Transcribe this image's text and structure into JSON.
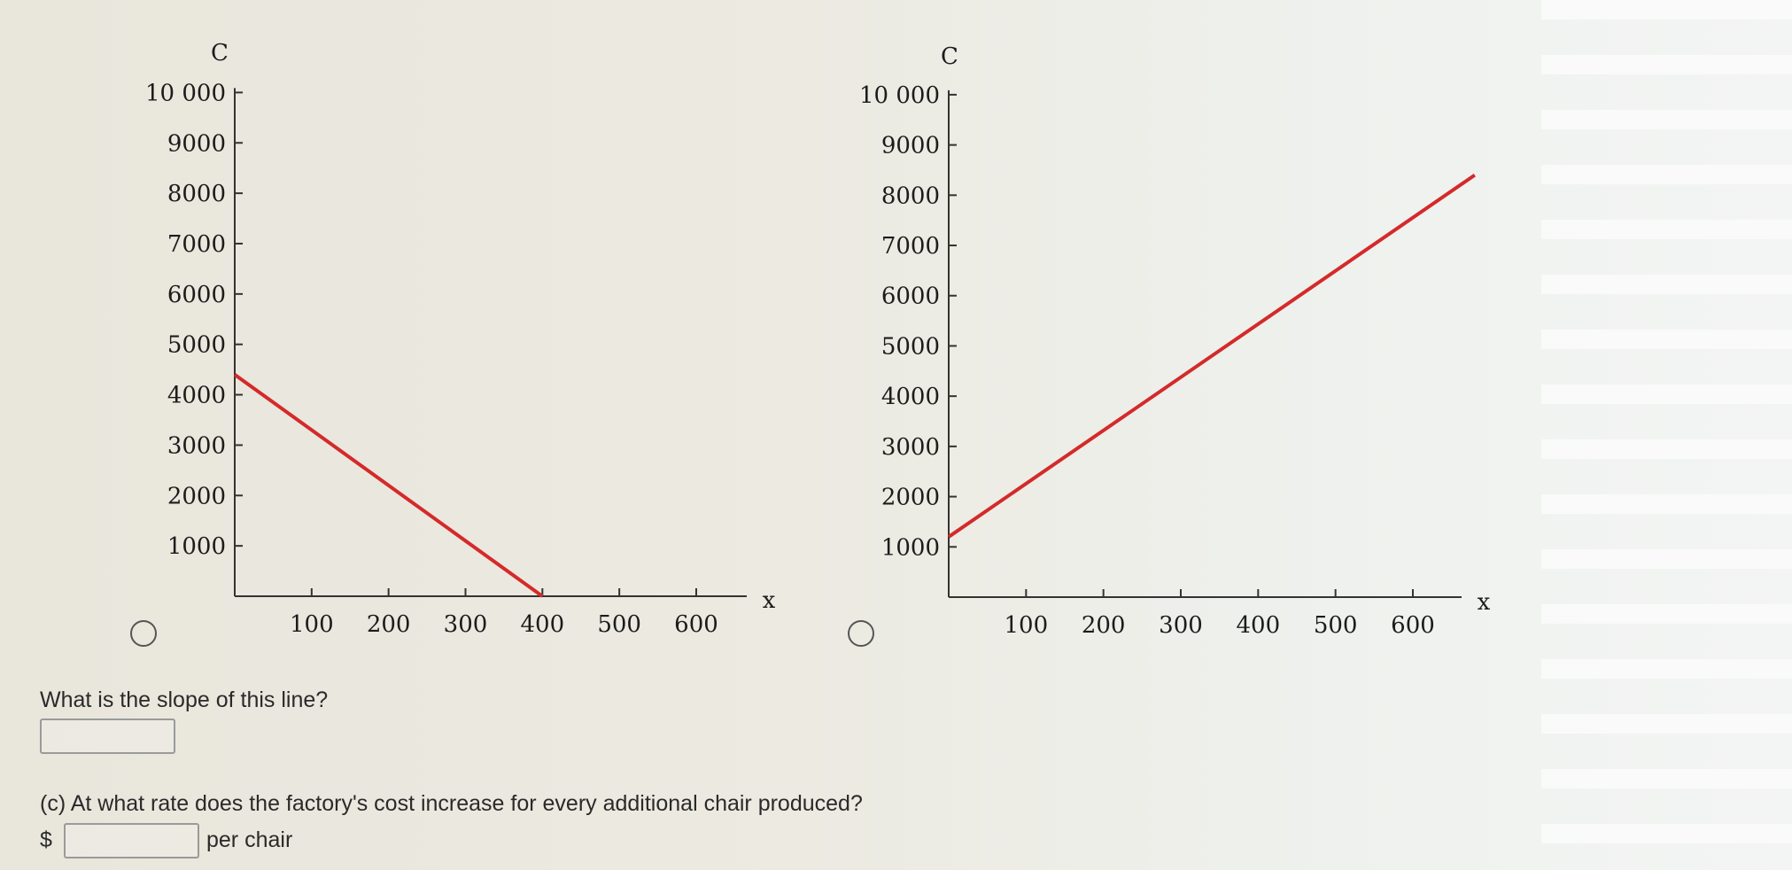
{
  "graphs": [
    {
      "id": "graph-a",
      "y_axis_label": "C",
      "x_axis_label": "x",
      "chart_data": {
        "type": "line",
        "title": "",
        "xlabel": "x",
        "ylabel": "C",
        "xlim": [
          0,
          600
        ],
        "ylim": [
          0,
          10000
        ],
        "x_ticks": [
          100,
          200,
          300,
          400,
          500,
          600
        ],
        "y_ticks": [
          1000,
          2000,
          3000,
          4000,
          5000,
          6000,
          7000,
          8000,
          9000,
          10000
        ],
        "x_tick_labels": [
          "100",
          "200",
          "300",
          "400",
          "500",
          "600"
        ],
        "y_tick_labels": [
          "1000",
          "2000",
          "3000",
          "4000",
          "5000",
          "6000",
          "7000",
          "8000",
          "9000",
          "10 000"
        ],
        "line_color": "#d42a2a",
        "series": [
          {
            "x": [
              0,
              400
            ],
            "y": [
              4400,
              0
            ]
          }
        ]
      }
    },
    {
      "id": "graph-b",
      "y_axis_label": "C",
      "x_axis_label": "x",
      "chart_data": {
        "type": "line",
        "title": "",
        "xlabel": "x",
        "ylabel": "C",
        "xlim": [
          0,
          600
        ],
        "ylim": [
          0,
          10000
        ],
        "x_ticks": [
          100,
          200,
          300,
          400,
          500,
          600
        ],
        "y_ticks": [
          1000,
          2000,
          3000,
          4000,
          5000,
          6000,
          7000,
          8000,
          9000,
          10000
        ],
        "x_tick_labels": [
          "100",
          "200",
          "300",
          "400",
          "500",
          "600"
        ],
        "y_tick_labels": [
          "1000",
          "2000",
          "3000",
          "4000",
          "5000",
          "6000",
          "7000",
          "8000",
          "9000",
          "10 000"
        ],
        "line_color": "#d42a2a",
        "series": [
          {
            "x": [
              0,
              680
            ],
            "y": [
              1200,
              8400
            ]
          }
        ]
      }
    }
  ],
  "slope_question": {
    "text": "What is the slope of this line?",
    "value": ""
  },
  "rate_question": {
    "text": "(c) At what rate does the factory's cost increase for every additional chair produced?",
    "currency_symbol": "$",
    "value": "",
    "unit_text": "per chair"
  },
  "colors": {
    "line": "#d42a2a",
    "axis": "#333333"
  }
}
